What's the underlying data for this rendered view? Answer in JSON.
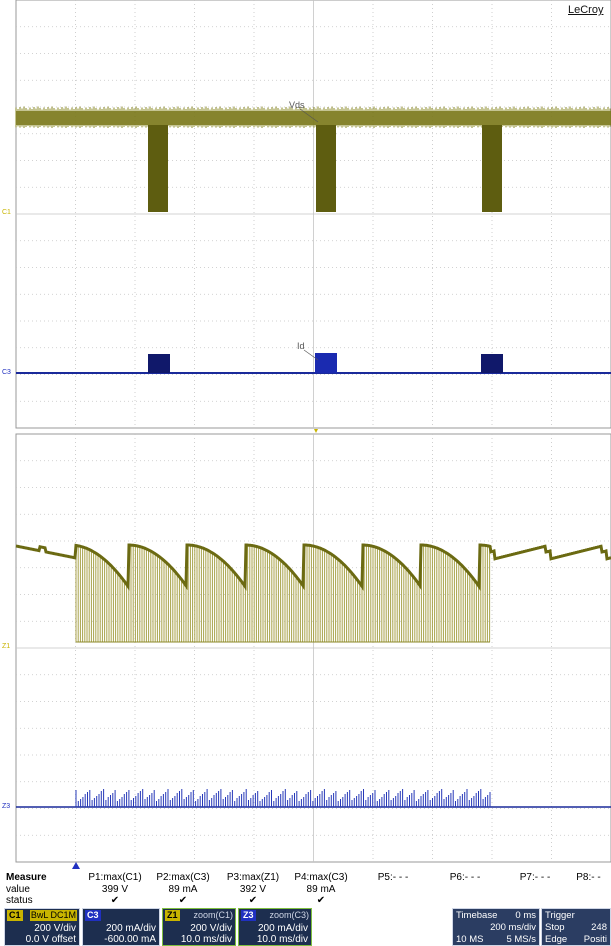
{
  "brand": "LeCroy",
  "traces": {
    "vds_label": "Vds",
    "id_label": "Id",
    "c1_marker": "C1",
    "c3_marker": "C3",
    "z1_marker": "Z1",
    "z3_marker": "Z3"
  },
  "colors": {
    "yellow_trace": "#6b6a12",
    "yellow_fill": "#8c8a2a",
    "blue_trace": "#1a2a9a",
    "grid": "#b8b8b8",
    "zoom_fill": "#a8a24a"
  },
  "measure": {
    "title": "Measure",
    "row_value": "value",
    "row_status": "status",
    "columns": [
      {
        "name": "P1:max(C1)",
        "value": "399 V",
        "status": "✔"
      },
      {
        "name": "P2:max(C3)",
        "value": "89 mA",
        "status": "✔"
      },
      {
        "name": "P3:max(Z1)",
        "value": "392 V",
        "status": "✔"
      },
      {
        "name": "P4:max(C3)",
        "value": "89 mA",
        "status": "✔"
      },
      {
        "name": "P5:- - -",
        "value": "",
        "status": ""
      },
      {
        "name": "P6:- - -",
        "value": "",
        "status": ""
      },
      {
        "name": "P7:- - -",
        "value": "",
        "status": ""
      },
      {
        "name": "P8:- -",
        "value": "",
        "status": ""
      }
    ]
  },
  "descriptors": [
    {
      "tag": "C1",
      "header": "BwL DC1M",
      "line1": "200 V/div",
      "line2": "0.0 V offset",
      "tag_color": "#c8b400"
    },
    {
      "tag": "C3",
      "header": "",
      "line1": "200 mA/div",
      "line2": "-600.00 mA",
      "tag_color": "#2030c0"
    },
    {
      "tag": "Z1",
      "header": "zoom(C1)",
      "line1": "200 V/div",
      "line2": "10.0 ms/div",
      "tag_color": "#c8b400"
    },
    {
      "tag": "Z3",
      "header": "zoom(C3)",
      "line1": "200 mA/div",
      "line2": "10.0 ms/div",
      "tag_color": "#2030c0"
    }
  ],
  "timebase": {
    "label": "Timebase",
    "delay": "0 ms",
    "div": "200 ms/div",
    "samples": "10 MS",
    "rate": "5 MS/s"
  },
  "trigger": {
    "label": "Trigger",
    "mode": "Stop",
    "level": "248",
    "type": "Edge",
    "slope": "Positi"
  }
}
